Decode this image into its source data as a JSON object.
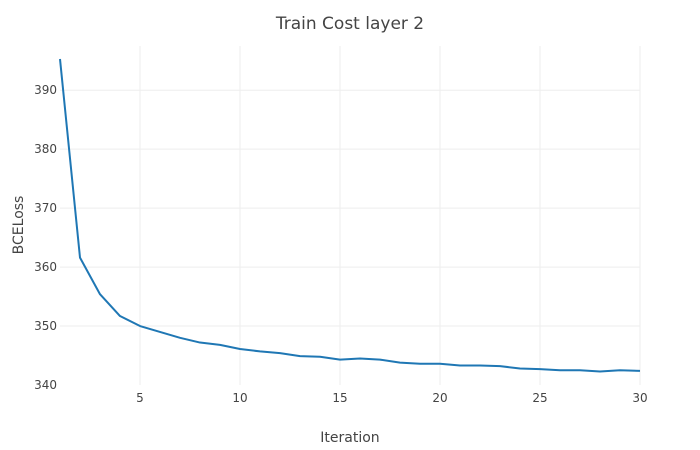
{
  "chart_data": {
    "type": "line",
    "title": "Train Cost layer 2",
    "xlabel": "Iteration",
    "ylabel": "BCELoss",
    "xlim": [
      1,
      30
    ],
    "ylim": [
      340,
      397.5
    ],
    "xticks": [
      5,
      10,
      15,
      20,
      25,
      30
    ],
    "yticks": [
      340,
      350,
      360,
      370,
      380,
      390
    ],
    "grid": true,
    "series": [
      {
        "color": "#1f77b4",
        "x": [
          1,
          2,
          3,
          4,
          5,
          6,
          7,
          8,
          9,
          10,
          11,
          12,
          13,
          14,
          15,
          16,
          17,
          18,
          19,
          20,
          21,
          22,
          23,
          24,
          25,
          26,
          27,
          28,
          29,
          30
        ],
        "y": [
          395.3,
          361.6,
          355.4,
          351.7,
          350.0,
          349.0,
          348.0,
          347.2,
          346.8,
          346.1,
          345.7,
          345.4,
          344.9,
          344.8,
          344.3,
          344.5,
          344.3,
          343.8,
          343.6,
          343.6,
          343.3,
          343.3,
          343.2,
          342.8,
          342.7,
          342.5,
          342.5,
          342.3,
          342.5,
          342.4
        ]
      }
    ]
  }
}
